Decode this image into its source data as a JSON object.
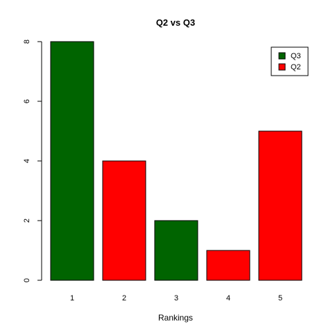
{
  "chart_data": {
    "type": "bar",
    "title": "Q2 vs Q3",
    "xlabel": "Rankings",
    "ylabel": "",
    "categories": [
      "1",
      "2",
      "3",
      "4",
      "5"
    ],
    "values": [
      8,
      4,
      2,
      1,
      5
    ],
    "bar_colors": [
      "#006400",
      "#ff0000",
      "#006400",
      "#ff0000",
      "#ff0000"
    ],
    "ylim": [
      0,
      8
    ],
    "yticks": [
      0,
      2,
      4,
      6,
      8
    ],
    "grid": false,
    "legend": {
      "position": "top-right",
      "items": [
        {
          "label": "Q3",
          "color": "#006400"
        },
        {
          "label": "Q2",
          "color": "#ff0000"
        }
      ]
    }
  }
}
